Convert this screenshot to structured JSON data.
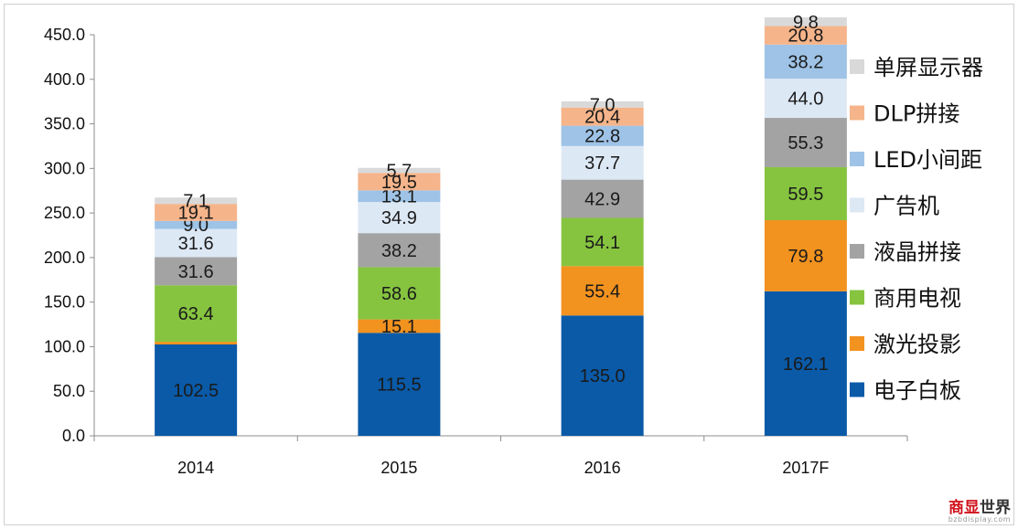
{
  "chart_data": {
    "type": "bar",
    "stacked": true,
    "categories": [
      "2014",
      "2015",
      "2016",
      "2017F"
    ],
    "ylim": [
      0,
      450
    ],
    "yticks": [
      "0.0",
      "50.0",
      "100.0",
      "150.0",
      "200.0",
      "250.0",
      "300.0",
      "350.0",
      "400.0",
      "450.0"
    ],
    "ytick_values": [
      0,
      50,
      100,
      150,
      200,
      250,
      300,
      350,
      400,
      450
    ],
    "series": [
      {
        "name": "电子白板",
        "color": "#0a5aa8",
        "label_color": "#1a1a1a",
        "values": [
          102.5,
          115.5,
          135.0,
          162.1
        ],
        "labels": [
          "102.5",
          "115.5",
          "135.0",
          "162.1"
        ]
      },
      {
        "name": "激光投影",
        "color": "#f2921f",
        "label_color": "#1a1a1a",
        "values": [
          3.0,
          15.1,
          55.4,
          79.8
        ],
        "labels": [
          "",
          "15.1",
          "55.4",
          "79.8"
        ]
      },
      {
        "name": "商用电视",
        "color": "#86c440",
        "label_color": "#1a1a1a",
        "values": [
          63.4,
          58.6,
          54.1,
          59.5
        ],
        "labels": [
          "63.4",
          "58.6",
          "54.1",
          "59.5"
        ]
      },
      {
        "name": "液晶拼接",
        "color": "#a3a3a3",
        "label_color": "#1a1a1a",
        "values": [
          31.6,
          38.2,
          42.9,
          55.3
        ],
        "labels": [
          "31.6",
          "38.2",
          "42.9",
          "55.3"
        ]
      },
      {
        "name": "广告机",
        "color": "#dde8f5",
        "label_color": "#1a1a1a",
        "values": [
          31.6,
          34.9,
          37.7,
          44.0
        ],
        "labels": [
          "31.6",
          "34.9",
          "37.7",
          "44.0"
        ]
      },
      {
        "name": "LED小间距",
        "color": "#9ec3e6",
        "label_color": "#1a1a1a",
        "values": [
          9.0,
          13.1,
          22.8,
          38.2
        ],
        "labels": [
          "9.0",
          "13.1",
          "22.8",
          "38.2"
        ]
      },
      {
        "name": "DLP拼接",
        "color": "#f5b48a",
        "label_color": "#1a1a1a",
        "values": [
          19.1,
          19.5,
          20.4,
          20.8
        ],
        "labels": [
          "19.1",
          "19.5",
          "20.4",
          "20.8"
        ]
      },
      {
        "name": "单屏显示器",
        "color": "#d9d9d9",
        "label_color": "#1a1a1a",
        "values": [
          7.1,
          5.7,
          7.0,
          9.8
        ],
        "labels": [
          "7.1",
          "5.7",
          "7.0",
          "9.8"
        ]
      }
    ],
    "legend_position": "right",
    "grid": false
  },
  "watermark": {
    "main_a": "商显",
    "main_b": "世界",
    "sub": "bzbdisplay.com",
    "color_a": "#d0121b",
    "color_b": "#333333"
  }
}
